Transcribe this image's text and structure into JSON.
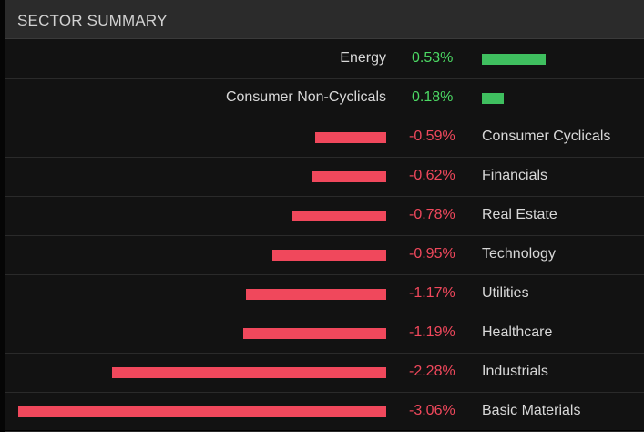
{
  "header": {
    "title": "SECTOR SUMMARY"
  },
  "colors": {
    "positive": "#3fbf5f",
    "negative": "#f0485c",
    "positive_text": "#4cd964",
    "negative_text": "#f0485c"
  },
  "chart_data": {
    "type": "bar",
    "title": "SECTOR SUMMARY",
    "unit": "%",
    "categories": [
      "Energy",
      "Consumer Non-Cyclicals",
      "Consumer Cyclicals",
      "Financials",
      "Real Estate",
      "Technology",
      "Utilities",
      "Healthcare",
      "Industrials",
      "Basic Materials"
    ],
    "values": [
      0.53,
      0.18,
      -0.59,
      -0.62,
      -0.78,
      -0.95,
      -1.17,
      -1.19,
      -2.28,
      -3.06
    ],
    "labels": [
      "0.53%",
      "0.18%",
      "-0.59%",
      "-0.62%",
      "-0.78%",
      "-0.95%",
      "-1.17%",
      "-1.19%",
      "-2.28%",
      "-3.06%"
    ]
  }
}
